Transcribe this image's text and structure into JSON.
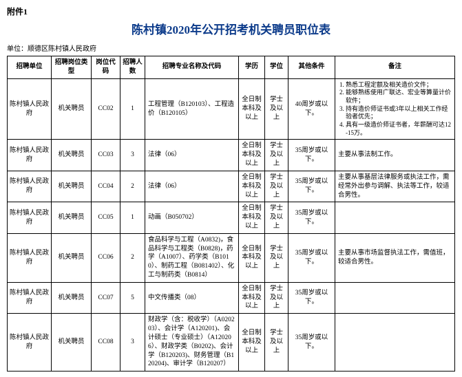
{
  "attachment_label": "附件1",
  "title": "陈村镇2020年公开招考机关聘员职位表",
  "unit_label": "单位：顺德区陈村镇人民政府",
  "headers": {
    "unit": "招聘单位",
    "type": "招聘岗位类型",
    "code": "岗位代码",
    "count": "招聘人数",
    "major": "招聘专业名称及代码",
    "edu": "学历",
    "degree": "学位",
    "other": "其他条件",
    "remark": "备注"
  },
  "rows": [
    {
      "unit": "陈村镇人民政府",
      "type": "机关聘员",
      "code": "CC02",
      "count": "1",
      "major": "工程管理（B120103）、工程造价（B120105）",
      "edu": "全日制本科及以上",
      "degree": "学士及以上",
      "other": "40周岁或以下。",
      "remark_items": [
        "熟悉工程定额及相关造价文件；",
        "能够熟练使用广联达、宏业等算量计价软件；",
        "持有造价师证书或3年以上相关工作经验者优先；",
        "具有一级造价师证书者，年薪酬可达12-15万。"
      ]
    },
    {
      "unit": "陈村镇人民政府",
      "type": "机关聘员",
      "code": "CC03",
      "count": "3",
      "major": "法律（06）",
      "edu": "全日制本科及以上",
      "degree": "学士及以上",
      "other": "35周岁或以下。",
      "remark": "主要从事法制工作。"
    },
    {
      "unit": "陈村镇人民政府",
      "type": "机关聘员",
      "code": "CC04",
      "count": "2",
      "major": "法律（06）",
      "edu": "全日制本科及以上",
      "degree": "学士及以上",
      "other": "35周岁或以下。",
      "remark": "主要从事基层法律服务或执法工作，需经常外出参与调解、执法等工作，较适合男性。"
    },
    {
      "unit": "陈村镇人民政府",
      "type": "机关聘员",
      "code": "CC05",
      "count": "1",
      "major": "动画（B050702）",
      "edu": "全日制本科及以上",
      "degree": "学士及以上",
      "other": "35周岁或以下。",
      "remark": ""
    },
    {
      "unit": "陈村镇人民政府",
      "type": "机关聘员",
      "code": "CC06",
      "count": "2",
      "major": "食品科学与工程（A0832)，食品科学与工程类（B0828)，药学（A1007）、药学类（B1010）、制药工程（B081402）、化工与制药类（B0814）",
      "edu": "全日制本科及以上",
      "degree": "学士及以上",
      "other": "35周岁或以下。",
      "remark": "主要从事市场监督执法工作，需值班，较适合男性。"
    },
    {
      "unit": "陈村镇人民政府",
      "type": "机关聘员",
      "code": "CC07",
      "count": "5",
      "major": "中文传播类（08）",
      "edu": "全日制本科及以上",
      "degree": "学士及以上",
      "other": "35周岁或以下。",
      "remark": ""
    },
    {
      "unit": "陈村镇人民政府",
      "type": "机关聘员",
      "code": "CC08",
      "count": "3",
      "major": "财政学（含：税收学）（A020203）、会计学（A120201)、会计硕士（专业硕士）（A120206）、财政学类（B0202)、会计学（B120203)、财务管理（B120204)、审计学（B120207）",
      "edu": "全日制本科及以上",
      "degree": "学士及以上",
      "other": "35周岁或以下。",
      "remark": ""
    }
  ]
}
